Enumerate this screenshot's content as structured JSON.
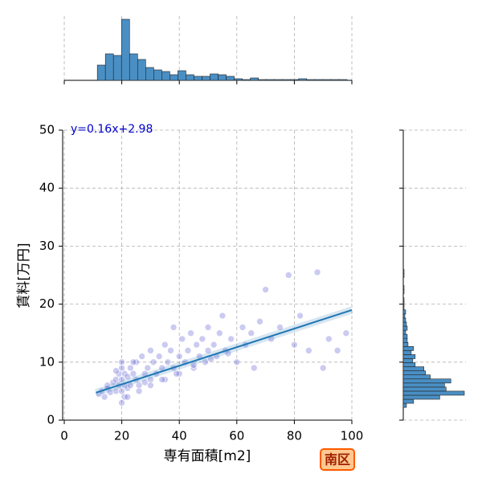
{
  "chart_data": [
    {
      "type": "scatter",
      "xlabel": "専有面積[m2]",
      "ylabel": "賃料[万円]",
      "annotation": "y=0.16x+2.98",
      "badge": "南区",
      "xlim": [
        0,
        100
      ],
      "ylim": [
        0,
        50
      ],
      "xticks": [
        0,
        20,
        40,
        60,
        80,
        100
      ],
      "yticks": [
        0,
        10,
        20,
        30,
        40,
        50
      ],
      "grid": true,
      "color": "#6a6ad8",
      "line_color": "#1f77b4",
      "fit": {
        "slope": 0.16,
        "intercept": 2.98,
        "x": [
          11,
          100
        ]
      },
      "x": [
        12,
        13,
        14,
        15,
        15,
        16,
        17,
        18,
        18,
        19,
        19,
        20,
        20,
        20,
        20,
        21,
        21,
        21,
        22,
        22,
        23,
        23,
        24,
        25,
        25,
        26,
        27,
        28,
        28,
        29,
        30,
        30,
        31,
        32,
        33,
        34,
        35,
        35,
        36,
        37,
        38,
        38,
        40,
        40,
        41,
        42,
        43,
        44,
        45,
        46,
        47,
        48,
        49,
        50,
        50,
        52,
        53,
        54,
        55,
        56,
        58,
        60,
        62,
        63,
        65,
        66,
        68,
        70,
        72,
        75,
        78,
        80,
        82,
        85,
        88,
        90,
        92,
        95,
        98,
        20,
        22,
        24,
        18,
        26,
        30,
        34,
        39,
        45,
        51,
        57
      ],
      "y": [
        4.5,
        5,
        4,
        6,
        5.5,
        4.8,
        6.5,
        5,
        7,
        6,
        8,
        5,
        7,
        9,
        10,
        6,
        8,
        4,
        7.5,
        5.5,
        9,
        6,
        8,
        7,
        10,
        6,
        11,
        8,
        6.5,
        9,
        12,
        7,
        10,
        8,
        11,
        9,
        13,
        7,
        10,
        12,
        9,
        16,
        11,
        8,
        14,
        10,
        12,
        15,
        9,
        13,
        11,
        14,
        10,
        16,
        12,
        13,
        11,
        15,
        18,
        12,
        14,
        10,
        16,
        13,
        15,
        9,
        17,
        22.5,
        14,
        16,
        25,
        13,
        18,
        12,
        25.5,
        9,
        14,
        12,
        15,
        3,
        4,
        10,
        8.5,
        5,
        6,
        7,
        8,
        9.5,
        10.5,
        11.5
      ]
    },
    {
      "type": "histogram",
      "orientation": "vertical",
      "color": "#4a8fc4",
      "bins": [
        11.5,
        14.3,
        17.1,
        19.9,
        22.7,
        25.5,
        28.3,
        31.1,
        33.9,
        36.7,
        39.5,
        42.3,
        45.1,
        47.9,
        50.7,
        53.5,
        56.3,
        59.1,
        61.9,
        64.7,
        67.5,
        70.3,
        73.1,
        75.9,
        78.7,
        81.5,
        84.3,
        87.1,
        89.9,
        92.7,
        95.5,
        98.3
      ],
      "counts": [
        19,
        33,
        31,
        76,
        33,
        26,
        16,
        13,
        11,
        7,
        12,
        7,
        5,
        5,
        8,
        7,
        5,
        2,
        1,
        3,
        1,
        1,
        1,
        1,
        1,
        2,
        1,
        1,
        1,
        1,
        1
      ]
    },
    {
      "type": "histogram",
      "orientation": "horizontal",
      "color": "#4a8fc4",
      "bins": [
        2.2,
        2.9,
        3.6,
        4.3,
        5.0,
        5.7,
        6.4,
        7.1,
        7.8,
        8.5,
        9.2,
        9.9,
        10.6,
        11.3,
        12.0,
        12.7,
        13.4,
        14.1,
        14.8,
        15.5,
        16.2,
        16.9,
        17.6,
        18.3,
        19.0,
        19.7,
        20.4,
        21.1,
        21.8,
        22.5,
        23.2,
        23.9,
        24.6,
        25.3,
        26.0
      ],
      "counts": [
        4,
        13,
        46,
        77,
        54,
        52,
        60,
        34,
        28,
        26,
        15,
        12,
        15,
        10,
        13,
        6,
        5,
        5,
        3,
        5,
        4,
        3,
        2,
        3,
        1,
        1,
        1,
        0,
        1,
        1,
        0,
        0,
        1,
        1
      ]
    }
  ]
}
